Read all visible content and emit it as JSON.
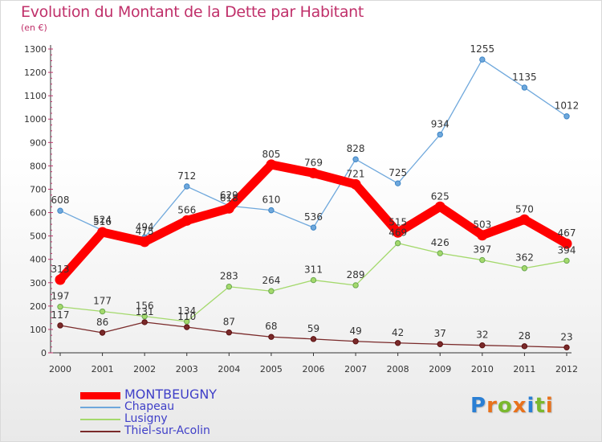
{
  "title": "Evolution du Montant de la Dette par Habitant",
  "subtitle": "(en €)",
  "logo": {
    "text": "Proxiti",
    "letters": [
      {
        "ch": "P",
        "color": "#2a7fd4"
      },
      {
        "ch": "r",
        "color": "#e8721c"
      },
      {
        "ch": "o",
        "color": "#7ab82e"
      },
      {
        "ch": "x",
        "color": "#e8721c"
      },
      {
        "ch": "i",
        "color": "#2a7fd4"
      },
      {
        "ch": "t",
        "color": "#7ab82e"
      },
      {
        "ch": "i",
        "color": "#e8721c"
      }
    ]
  },
  "chart_data": {
    "type": "line",
    "title": "Evolution du Montant de la Dette par Habitant",
    "subtitle": "(en €)",
    "xlabel": "",
    "ylabel": "",
    "x": [
      "2000",
      "2001",
      "2002",
      "2003",
      "2004",
      "2005",
      "2006",
      "2007",
      "2008",
      "2009",
      "2010",
      "2011",
      "2012"
    ],
    "ylim": [
      0,
      1300
    ],
    "yticks": [
      0,
      100,
      200,
      300,
      400,
      500,
      600,
      700,
      800,
      900,
      1000,
      1100,
      1200,
      1300
    ],
    "grid": false,
    "legend": "bottom-left",
    "series": [
      {
        "name": "MONTBEUGNY",
        "color": "#ff0000",
        "emphasis": true,
        "values": [
          313,
          516,
          475,
          566,
          618,
          805,
          769,
          721,
          515,
          625,
          503,
          570,
          467
        ]
      },
      {
        "name": "Chapeau",
        "color": "#6fa8dc",
        "marker": "#3d85c6",
        "emphasis": false,
        "values": [
          608,
          524,
          494,
          712,
          629,
          610,
          536,
          828,
          725,
          934,
          1255,
          1135,
          1012
        ]
      },
      {
        "name": "Lusigny",
        "color": "#a4d96c",
        "marker": "#6aa84f",
        "emphasis": false,
        "values": [
          197,
          177,
          156,
          134,
          283,
          264,
          311,
          289,
          469,
          426,
          397,
          362,
          394
        ]
      },
      {
        "name": "Thiel-sur-Acolin",
        "color": "#7a2a2a",
        "marker": "#5b0f0f",
        "emphasis": false,
        "values": [
          117,
          86,
          131,
          110,
          87,
          68,
          59,
          49,
          42,
          37,
          32,
          28,
          23
        ]
      }
    ]
  }
}
